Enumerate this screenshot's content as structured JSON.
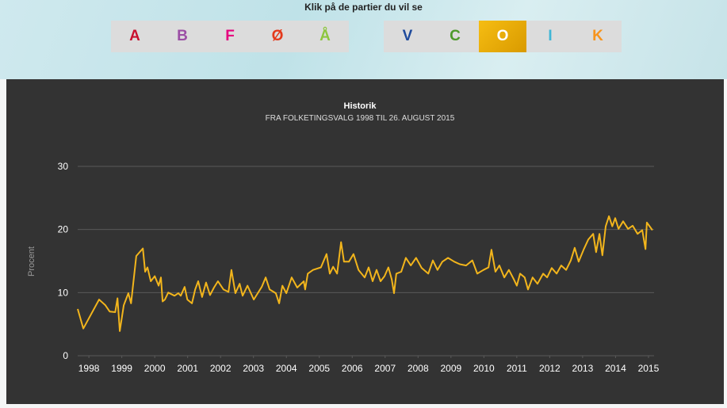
{
  "header": {
    "prompt": "Klik på de partier du vil se"
  },
  "buttons": {
    "left": [
      {
        "label": "A",
        "color": "#c8102e"
      },
      {
        "label": "B",
        "color": "#9b4fa5"
      },
      {
        "label": "F",
        "color": "#e6007e"
      },
      {
        "label": "Ø",
        "color": "#e4391b"
      },
      {
        "label": "Å",
        "color": "#8dc63f"
      }
    ],
    "right": [
      {
        "label": "V",
        "color": "#1e4a9c"
      },
      {
        "label": "C",
        "color": "#4c9a2a"
      },
      {
        "label": "O",
        "color": "#ffffff",
        "selected": true
      },
      {
        "label": "I",
        "color": "#3fb6d6"
      },
      {
        "label": "K",
        "color": "#f7941d"
      }
    ]
  },
  "chart_data": {
    "type": "line",
    "title": "Historik",
    "subtitle": "FRA FOLKETINGSVALG 1998 TIL 26. AUGUST 2015",
    "y_label": "Procent",
    "color": "#f2b51c",
    "grid": true,
    "xlim": [
      1997.66,
      2015.17
    ],
    "xticks": [
      1998,
      1999,
      2000,
      2001,
      2002,
      2003,
      2004,
      2005,
      2006,
      2007,
      2008,
      2009,
      2010,
      2011,
      2012,
      2013,
      2014,
      2015
    ],
    "ylim": [
      0,
      30
    ],
    "yticks": [
      0,
      10,
      20,
      30
    ],
    "x": [
      1997.66,
      1997.83,
      1998.31,
      1998.5,
      1998.63,
      1998.8,
      1998.87,
      1998.94,
      1999.06,
      1999.2,
      1999.28,
      1999.44,
      1999.64,
      1999.71,
      1999.78,
      1999.88,
      2000.0,
      2000.12,
      2000.19,
      2000.24,
      2000.31,
      2000.41,
      2000.6,
      2000.72,
      2000.79,
      2000.91,
      2000.99,
      2001.13,
      2001.23,
      2001.32,
      2001.44,
      2001.56,
      2001.68,
      2001.8,
      2001.92,
      2002.09,
      2002.24,
      2002.33,
      2002.45,
      2002.58,
      2002.67,
      2002.82,
      2003.01,
      2003.13,
      2003.25,
      2003.37,
      2003.49,
      2003.68,
      2003.78,
      2003.88,
      2004.0,
      2004.16,
      2004.33,
      2004.53,
      2004.57,
      2004.65,
      2004.81,
      2005.05,
      2005.22,
      2005.32,
      2005.42,
      2005.54,
      2005.66,
      2005.75,
      2005.9,
      2006.04,
      2006.19,
      2006.38,
      2006.5,
      2006.62,
      2006.74,
      2006.86,
      2006.98,
      2007.1,
      2007.2,
      2007.27,
      2007.34,
      2007.49,
      2007.63,
      2007.78,
      2007.94,
      2008.11,
      2008.31,
      2008.45,
      2008.59,
      2008.74,
      2008.91,
      2009.1,
      2009.27,
      2009.46,
      2009.65,
      2009.8,
      2009.99,
      2010.14,
      2010.23,
      2010.35,
      2010.47,
      2010.62,
      2010.76,
      2010.91,
      2011.0,
      2011.1,
      2011.24,
      2011.34,
      2011.48,
      2011.63,
      2011.8,
      2011.92,
      2012.06,
      2012.21,
      2012.35,
      2012.5,
      2012.64,
      2012.76,
      2012.88,
      2013.03,
      2013.17,
      2013.32,
      2013.41,
      2013.51,
      2013.6,
      2013.7,
      2013.8,
      2013.9,
      2013.99,
      2014.09,
      2014.23,
      2014.38,
      2014.52,
      2014.67,
      2014.81,
      2014.91,
      2014.95,
      2015.12
    ],
    "values": [
      7.4,
      4.3,
      8.9,
      8.0,
      7.0,
      6.9,
      9.1,
      3.9,
      8.0,
      9.9,
      8.3,
      15.8,
      17.0,
      13.3,
      14.0,
      11.8,
      12.6,
      11.1,
      12.4,
      8.6,
      8.9,
      10.0,
      9.5,
      9.9,
      9.5,
      10.9,
      8.9,
      8.3,
      10.5,
      11.8,
      9.3,
      11.6,
      9.6,
      10.8,
      11.8,
      10.5,
      10.1,
      13.6,
      9.9,
      11.4,
      9.5,
      11.1,
      8.9,
      9.9,
      10.9,
      12.4,
      10.5,
      9.9,
      8.3,
      11.1,
      9.9,
      12.4,
      10.8,
      11.8,
      10.5,
      13.0,
      13.6,
      14.0,
      16.1,
      13.0,
      14.1,
      13.0,
      18.0,
      14.9,
      14.9,
      16.1,
      13.6,
      12.4,
      14.0,
      11.8,
      13.6,
      11.8,
      12.6,
      14.0,
      12.1,
      9.9,
      13.0,
      13.3,
      15.5,
      14.3,
      15.5,
      13.9,
      13.0,
      15.1,
      13.6,
      14.9,
      15.5,
      14.9,
      14.5,
      14.3,
      15.1,
      13.0,
      13.6,
      14.0,
      16.8,
      13.3,
      14.3,
      12.4,
      13.6,
      12.1,
      11.1,
      13.0,
      12.4,
      10.5,
      12.4,
      11.4,
      13.0,
      12.4,
      13.9,
      13.0,
      14.3,
      13.6,
      15.1,
      17.1,
      14.9,
      16.8,
      18.4,
      19.3,
      16.4,
      19.3,
      15.9,
      20.5,
      22.1,
      20.5,
      21.8,
      20.1,
      21.3,
      20.1,
      20.6,
      19.3,
      19.9,
      16.9,
      21.1,
      19.9
    ]
  }
}
